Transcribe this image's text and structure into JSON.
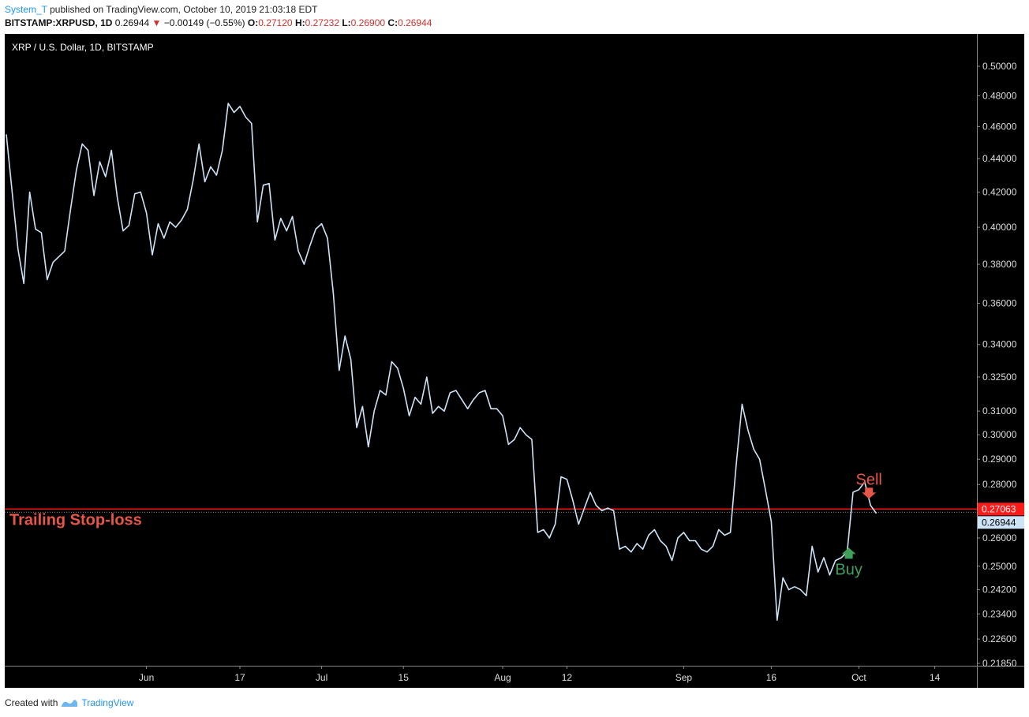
{
  "header": {
    "author": "System_T",
    "published_text": " published on TradingView.com, October 10, 2019 21:03:18 EDT",
    "symbol": "BITSTAMP:XRPUSD, 1D",
    "last": "0.26944",
    "change": "−0.00149 (−0.55%)",
    "open_label": "O:",
    "open": "0.27120",
    "high_label": "H:",
    "high": "0.27232",
    "low_label": "L:",
    "low": "0.26900",
    "close_label": "C:",
    "close": "0.26944"
  },
  "footer": {
    "created_with": "Created with",
    "brand": "TradingView"
  },
  "colors": {
    "background": "#000000",
    "line": "#cde3f7",
    "stop": "#ff1a1a",
    "sell": "#e8564a",
    "buy": "#3fa05a",
    "last_label_bg": "#cde3f7"
  },
  "chart_data": {
    "type": "line",
    "title": "XRP / U.S. Dollar, 1D, BITSTAMP",
    "scale": "log",
    "ylim": [
      0.2185,
      0.505
    ],
    "y_ticks": [
      0.5,
      0.48,
      0.46,
      0.44,
      0.42,
      0.4,
      0.38,
      0.36,
      0.34,
      0.325,
      0.31,
      0.3,
      0.29,
      0.28,
      0.26,
      0.25,
      0.242,
      0.234,
      0.226,
      0.2185
    ],
    "y_tick_labels": [
      "0.50000",
      "0.48000",
      "0.46000",
      "0.44000",
      "0.42000",
      "0.40000",
      "0.38000",
      "0.36000",
      "0.34000",
      "0.32500",
      "0.31000",
      "0.30000",
      "0.29000",
      "0.28000",
      "0.26000",
      "0.25000",
      "0.24200",
      "0.23400",
      "0.22600",
      "0.21850"
    ],
    "x_ticks": [
      {
        "label": "Jun",
        "date": "2019-06-01"
      },
      {
        "label": "17",
        "date": "2019-06-17"
      },
      {
        "label": "Jul",
        "date": "2019-07-01"
      },
      {
        "label": "15",
        "date": "2019-07-15"
      },
      {
        "label": "Aug",
        "date": "2019-08-01"
      },
      {
        "label": "12",
        "date": "2019-08-12"
      },
      {
        "label": "Sep",
        "date": "2019-09-01"
      },
      {
        "label": "16",
        "date": "2019-09-16"
      },
      {
        "label": "Oct",
        "date": "2019-10-01"
      },
      {
        "label": "14",
        "date": "2019-10-14"
      }
    ],
    "xlim": [
      "2019-05-08",
      "2019-10-22"
    ],
    "series": [
      {
        "values": [
          [
            "2019-05-08",
            0.455
          ],
          [
            "2019-05-09",
            0.42
          ],
          [
            "2019-05-10",
            0.388
          ],
          [
            "2019-05-11",
            0.37
          ],
          [
            "2019-05-12",
            0.42
          ],
          [
            "2019-05-13",
            0.399
          ],
          [
            "2019-05-14",
            0.397
          ],
          [
            "2019-05-15",
            0.372
          ],
          [
            "2019-05-16",
            0.381
          ],
          [
            "2019-05-17",
            0.384
          ],
          [
            "2019-05-18",
            0.387
          ],
          [
            "2019-05-19",
            0.41
          ],
          [
            "2019-05-20",
            0.433
          ],
          [
            "2019-05-21",
            0.449
          ],
          [
            "2019-05-22",
            0.445
          ],
          [
            "2019-05-23",
            0.418
          ],
          [
            "2019-05-24",
            0.438
          ],
          [
            "2019-05-25",
            0.429
          ],
          [
            "2019-05-26",
            0.445
          ],
          [
            "2019-05-27",
            0.417
          ],
          [
            "2019-05-28",
            0.398
          ],
          [
            "2019-05-29",
            0.401
          ],
          [
            "2019-05-30",
            0.419
          ],
          [
            "2019-05-31",
            0.42
          ],
          [
            "2019-06-01",
            0.408
          ],
          [
            "2019-06-02",
            0.385
          ],
          [
            "2019-06-03",
            0.402
          ],
          [
            "2019-06-04",
            0.394
          ],
          [
            "2019-06-05",
            0.403
          ],
          [
            "2019-06-06",
            0.4
          ],
          [
            "2019-06-07",
            0.404
          ],
          [
            "2019-06-08",
            0.41
          ],
          [
            "2019-06-09",
            0.427
          ],
          [
            "2019-06-10",
            0.449
          ],
          [
            "2019-06-11",
            0.426
          ],
          [
            "2019-06-12",
            0.435
          ],
          [
            "2019-06-13",
            0.43
          ],
          [
            "2019-06-14",
            0.445
          ],
          [
            "2019-06-15",
            0.475
          ],
          [
            "2019-06-16",
            0.469
          ],
          [
            "2019-06-17",
            0.473
          ],
          [
            "2019-06-18",
            0.466
          ],
          [
            "2019-06-19",
            0.462
          ],
          [
            "2019-06-20",
            0.403
          ],
          [
            "2019-06-21",
            0.424
          ],
          [
            "2019-06-22",
            0.425
          ],
          [
            "2019-06-23",
            0.393
          ],
          [
            "2019-06-24",
            0.405
          ],
          [
            "2019-06-25",
            0.398
          ],
          [
            "2019-06-26",
            0.406
          ],
          [
            "2019-06-27",
            0.387
          ],
          [
            "2019-06-28",
            0.38
          ],
          [
            "2019-06-29",
            0.39
          ],
          [
            "2019-06-30",
            0.399
          ],
          [
            "2019-07-01",
            0.402
          ],
          [
            "2019-07-02",
            0.394
          ],
          [
            "2019-07-03",
            0.365
          ],
          [
            "2019-07-04",
            0.328
          ],
          [
            "2019-07-05",
            0.344
          ],
          [
            "2019-07-06",
            0.333
          ],
          [
            "2019-07-07",
            0.303
          ],
          [
            "2019-07-08",
            0.312
          ],
          [
            "2019-07-09",
            0.295
          ],
          [
            "2019-07-10",
            0.31
          ],
          [
            "2019-07-11",
            0.319
          ],
          [
            "2019-07-12",
            0.317
          ],
          [
            "2019-07-13",
            0.332
          ],
          [
            "2019-07-14",
            0.329
          ],
          [
            "2019-07-15",
            0.32
          ],
          [
            "2019-07-16",
            0.308
          ],
          [
            "2019-07-17",
            0.316
          ],
          [
            "2019-07-18",
            0.313
          ],
          [
            "2019-07-19",
            0.325
          ],
          [
            "2019-07-20",
            0.309
          ],
          [
            "2019-07-21",
            0.312
          ],
          [
            "2019-07-22",
            0.31
          ],
          [
            "2019-07-23",
            0.318
          ],
          [
            "2019-07-24",
            0.319
          ],
          [
            "2019-07-25",
            0.315
          ],
          [
            "2019-07-26",
            0.311
          ],
          [
            "2019-07-27",
            0.315
          ],
          [
            "2019-07-28",
            0.318
          ],
          [
            "2019-07-29",
            0.319
          ],
          [
            "2019-07-30",
            0.311
          ],
          [
            "2019-07-31",
            0.311
          ],
          [
            "2019-08-01",
            0.308
          ],
          [
            "2019-08-02",
            0.296
          ],
          [
            "2019-08-03",
            0.298
          ],
          [
            "2019-08-04",
            0.303
          ],
          [
            "2019-08-05",
            0.3
          ],
          [
            "2019-08-06",
            0.298
          ],
          [
            "2019-08-07",
            0.262
          ],
          [
            "2019-08-08",
            0.263
          ],
          [
            "2019-08-09",
            0.26
          ],
          [
            "2019-08-10",
            0.265
          ],
          [
            "2019-08-11",
            0.283
          ],
          [
            "2019-08-12",
            0.282
          ],
          [
            "2019-08-13",
            0.274
          ],
          [
            "2019-08-14",
            0.265
          ],
          [
            "2019-08-15",
            0.271
          ],
          [
            "2019-08-16",
            0.277
          ],
          [
            "2019-08-17",
            0.272
          ],
          [
            "2019-08-18",
            0.27
          ],
          [
            "2019-08-19",
            0.271
          ],
          [
            "2019-08-20",
            0.27
          ],
          [
            "2019-08-21",
            0.256
          ],
          [
            "2019-08-22",
            0.257
          ],
          [
            "2019-08-23",
            0.255
          ],
          [
            "2019-08-24",
            0.258
          ],
          [
            "2019-08-25",
            0.256
          ],
          [
            "2019-08-26",
            0.261
          ],
          [
            "2019-08-27",
            0.263
          ],
          [
            "2019-08-28",
            0.259
          ],
          [
            "2019-08-29",
            0.257
          ],
          [
            "2019-08-30",
            0.252
          ],
          [
            "2019-08-31",
            0.26
          ],
          [
            "2019-09-01",
            0.262
          ],
          [
            "2019-09-02",
            0.259
          ],
          [
            "2019-09-03",
            0.259
          ],
          [
            "2019-09-04",
            0.256
          ],
          [
            "2019-09-05",
            0.255
          ],
          [
            "2019-09-06",
            0.257
          ],
          [
            "2019-09-07",
            0.263
          ],
          [
            "2019-09-08",
            0.261
          ],
          [
            "2019-09-09",
            0.262
          ],
          [
            "2019-09-10",
            0.288
          ],
          [
            "2019-09-11",
            0.313
          ],
          [
            "2019-09-12",
            0.302
          ],
          [
            "2019-09-13",
            0.294
          ],
          [
            "2019-09-14",
            0.29
          ],
          [
            "2019-09-15",
            0.278
          ],
          [
            "2019-09-16",
            0.266
          ],
          [
            "2019-09-17",
            0.232
          ],
          [
            "2019-09-18",
            0.246
          ],
          [
            "2019-09-19",
            0.242
          ],
          [
            "2019-09-20",
            0.243
          ],
          [
            "2019-09-21",
            0.242
          ],
          [
            "2019-09-22",
            0.24
          ],
          [
            "2019-09-23",
            0.257
          ],
          [
            "2019-09-24",
            0.248
          ],
          [
            "2019-09-25",
            0.253
          ],
          [
            "2019-09-26",
            0.247
          ],
          [
            "2019-09-27",
            0.252
          ],
          [
            "2019-09-28",
            0.253
          ],
          [
            "2019-09-29",
            0.255
          ],
          [
            "2019-09-30",
            0.277
          ],
          [
            "2019-10-01",
            0.278
          ],
          [
            "2019-10-02",
            0.281
          ],
          [
            "2019-10-03",
            0.272
          ],
          [
            "2019-10-04",
            0.269
          ]
        ]
      }
    ],
    "horizontal_line": {
      "value": 0.27063,
      "label": "0.27063"
    },
    "last_value": {
      "value": 0.26944,
      "label": "0.26944"
    },
    "annotations": [
      {
        "text": "Trailing Stop-loss",
        "kind": "stop-label"
      },
      {
        "text": "Sell",
        "kind": "sell",
        "date": "2019-10-03",
        "value": 0.2745
      },
      {
        "text": "Buy",
        "kind": "buy",
        "date": "2019-09-29",
        "value": 0.2565
      }
    ]
  }
}
